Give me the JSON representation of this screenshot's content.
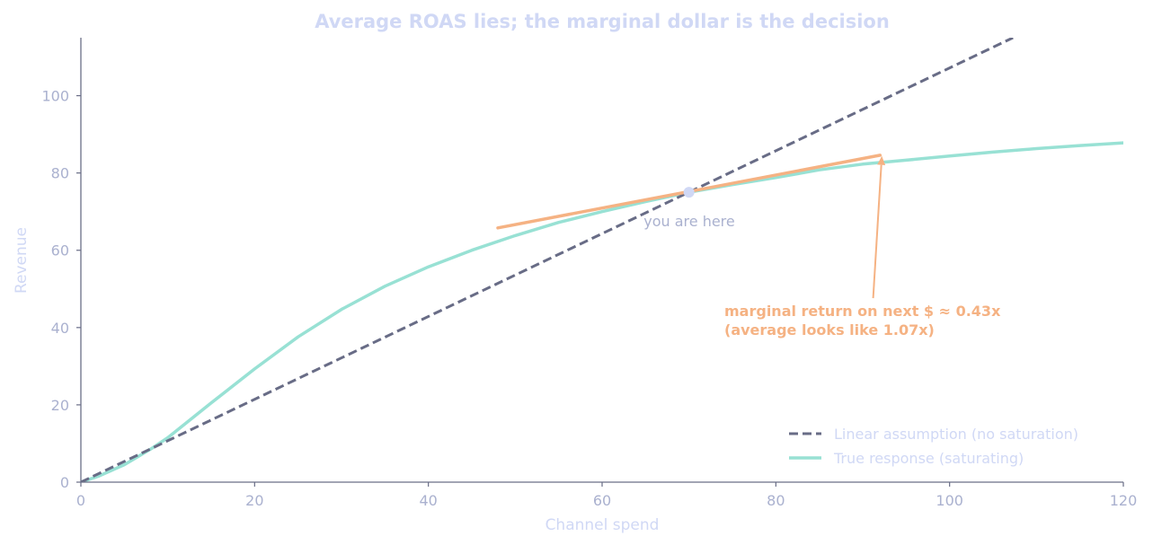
{
  "colors": {
    "true_response": "#98e1d4",
    "linear": "#686c86",
    "tangent": "#f5b283",
    "axis": "#6b6f87",
    "operating_point": "#d0d8f5"
  },
  "chart_data": {
    "type": "line",
    "title": "Average ROAS lies; the marginal dollar is the decision",
    "xlabel": "Channel spend",
    "ylabel": "Revenue",
    "xlim": [
      0,
      120
    ],
    "ylim": [
      0,
      115
    ],
    "x_ticks": [
      "0",
      "20",
      "40",
      "60",
      "80",
      "100",
      "120"
    ],
    "y_ticks": [
      "0",
      "20",
      "40",
      "60",
      "80",
      "100"
    ],
    "grid": false,
    "legend_position": "bottom-right",
    "series": [
      {
        "name": "Linear assumption (no saturation)",
        "style": "dashed",
        "x": [
          0,
          107.3
        ],
        "y": [
          0,
          115
        ]
      },
      {
        "name": "True response (saturating)",
        "style": "solid",
        "x": [
          0,
          2,
          5,
          8,
          10,
          15,
          20,
          25,
          30,
          35,
          40,
          45,
          50,
          55,
          60,
          65,
          70,
          75,
          80,
          85,
          90,
          95,
          100,
          105,
          110,
          115,
          120
        ],
        "y": [
          0,
          1.5,
          4.5,
          8.5,
          11.5,
          20.5,
          29.3,
          37.6,
          44.7,
          50.7,
          55.7,
          60,
          63.8,
          67.2,
          70,
          72.6,
          75,
          77,
          78.8,
          80.8,
          82.3,
          83.3,
          84.4,
          85.4,
          86.3,
          87.1,
          87.8
        ]
      }
    ],
    "tangent_line": {
      "x": [
        48,
        92
      ],
      "y": [
        65.8,
        84.6
      ]
    },
    "operating_point": {
      "x": 70,
      "y": 75,
      "label": "you are here"
    },
    "annotation": {
      "line1": "marginal return on next $ ≈ 0.43x",
      "line2": "(average looks like 1.07x)",
      "arrow_from": [
        91.2,
        47.6
      ],
      "arrow_to": [
        92.2,
        84.4
      ]
    }
  }
}
